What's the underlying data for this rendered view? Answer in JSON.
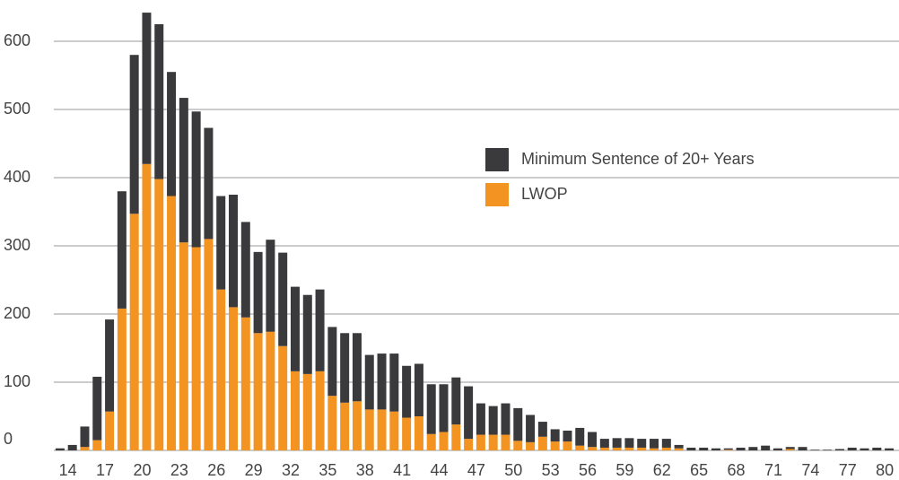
{
  "chart_data": {
    "type": "stacked_bar",
    "categories": [
      null,
      "14",
      null,
      null,
      "17",
      null,
      null,
      "20",
      null,
      null,
      "23",
      null,
      null,
      "26",
      null,
      null,
      "29",
      null,
      null,
      "32",
      null,
      null,
      "35",
      null,
      null,
      "38",
      null,
      null,
      "41",
      null,
      null,
      "44",
      null,
      null,
      "47",
      null,
      null,
      "50",
      null,
      null,
      "53",
      null,
      null,
      "56",
      null,
      null,
      "59",
      null,
      null,
      "62",
      null,
      null,
      "65",
      null,
      null,
      "68",
      null,
      null,
      "71",
      null,
      null,
      "74",
      null,
      null,
      "77",
      null,
      null,
      "80"
    ],
    "series": [
      {
        "name": "LWOP",
        "color": "#f39322",
        "values": [
          0,
          0,
          5,
          15,
          57,
          208,
          347,
          420,
          398,
          373,
          305,
          298,
          310,
          236,
          210,
          195,
          172,
          174,
          153,
          116,
          112,
          116,
          80,
          70,
          72,
          60,
          60,
          57,
          48,
          50,
          24,
          27,
          38,
          17,
          23,
          23,
          23,
          14,
          12,
          20,
          13,
          13,
          7,
          5,
          4,
          4,
          4,
          4,
          3,
          4,
          3,
          0,
          0,
          0,
          1,
          0,
          0,
          0,
          0,
          2,
          0,
          0,
          0,
          0,
          0,
          0,
          0,
          0
        ]
      },
      {
        "name": "Minimum Sentence of 20+ Years",
        "color": "#3a3a3c",
        "values": [
          3,
          8,
          30,
          93,
          135,
          172,
          233,
          222,
          227,
          182,
          212,
          199,
          163,
          137,
          165,
          140,
          119,
          135,
          137,
          124,
          116,
          120,
          101,
          102,
          100,
          80,
          82,
          85,
          76,
          77,
          73,
          70,
          69,
          77,
          46,
          42,
          46,
          48,
          40,
          22,
          18,
          16,
          26,
          22,
          13,
          14,
          14,
          13,
          14,
          13,
          5,
          4,
          4,
          3,
          2,
          4,
          5,
          7,
          3,
          3,
          5,
          1,
          1,
          2,
          4,
          3,
          4,
          3
        ]
      }
    ],
    "ylim": [
      0,
      650
    ],
    "yticks": [
      0,
      100,
      200,
      300,
      400,
      500,
      600
    ],
    "grid": true,
    "legend": "right"
  }
}
